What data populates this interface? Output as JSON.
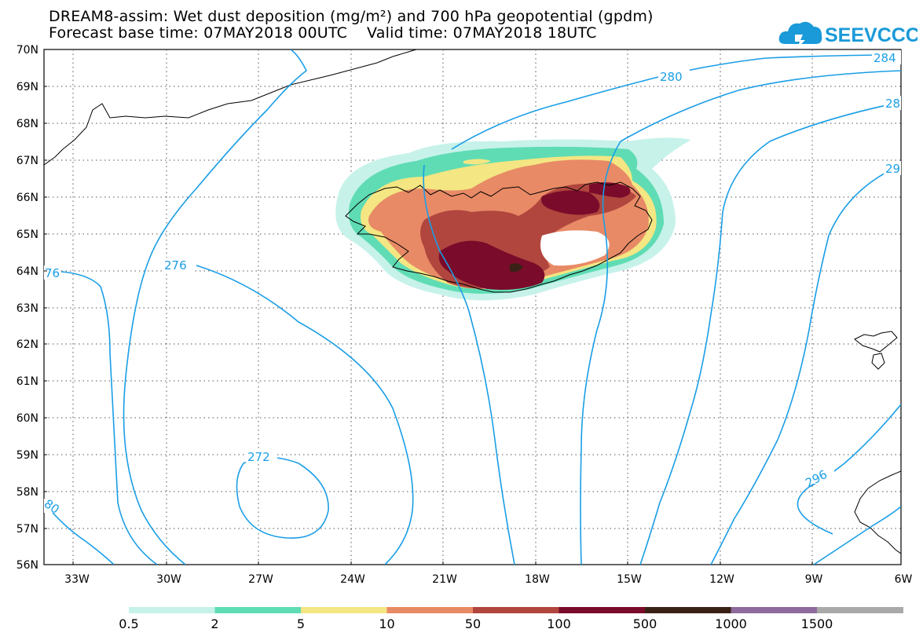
{
  "title": {
    "line1": "DREAM8-assim: Wet dust deposition (mg/m²) and 700 hPa geopotential (gpdm)",
    "line2_left": "Forecast base time: 07MAY2018 00UTC",
    "line2_right": "Valid time: 07MAY2018 18UTC"
  },
  "logo": {
    "text": "SEEVCCC",
    "icon": "cloud-icon",
    "color": "#1a9ad9"
  },
  "map": {
    "region": "North Atlantic / Iceland",
    "lat_labels": [
      "70N",
      "69N",
      "68N",
      "67N",
      "66N",
      "65N",
      "64N",
      "63N",
      "62N",
      "61N",
      "60N",
      "59N",
      "58N",
      "57N",
      "56N"
    ],
    "lon_labels": [
      "33W",
      "30W",
      "27W",
      "24W",
      "21W",
      "18W",
      "15W",
      "12W",
      "9W",
      "6W"
    ],
    "contour_color": "#1a9ee6",
    "contour_labels": [
      "280",
      "284",
      "28",
      "29",
      "276",
      "76",
      "272",
      "296",
      "80"
    ]
  },
  "legend": {
    "ticks": [
      "0.5",
      "2",
      "5",
      "10",
      "50",
      "100",
      "500",
      "1000",
      "1500"
    ],
    "colors": [
      "#c6f2ea",
      "#5fdcb4",
      "#f4e682",
      "#e88a66",
      "#b0463e",
      "#7a0b2a",
      "#3a2116",
      "#8f6a9c",
      "#a9a9a9"
    ]
  }
}
